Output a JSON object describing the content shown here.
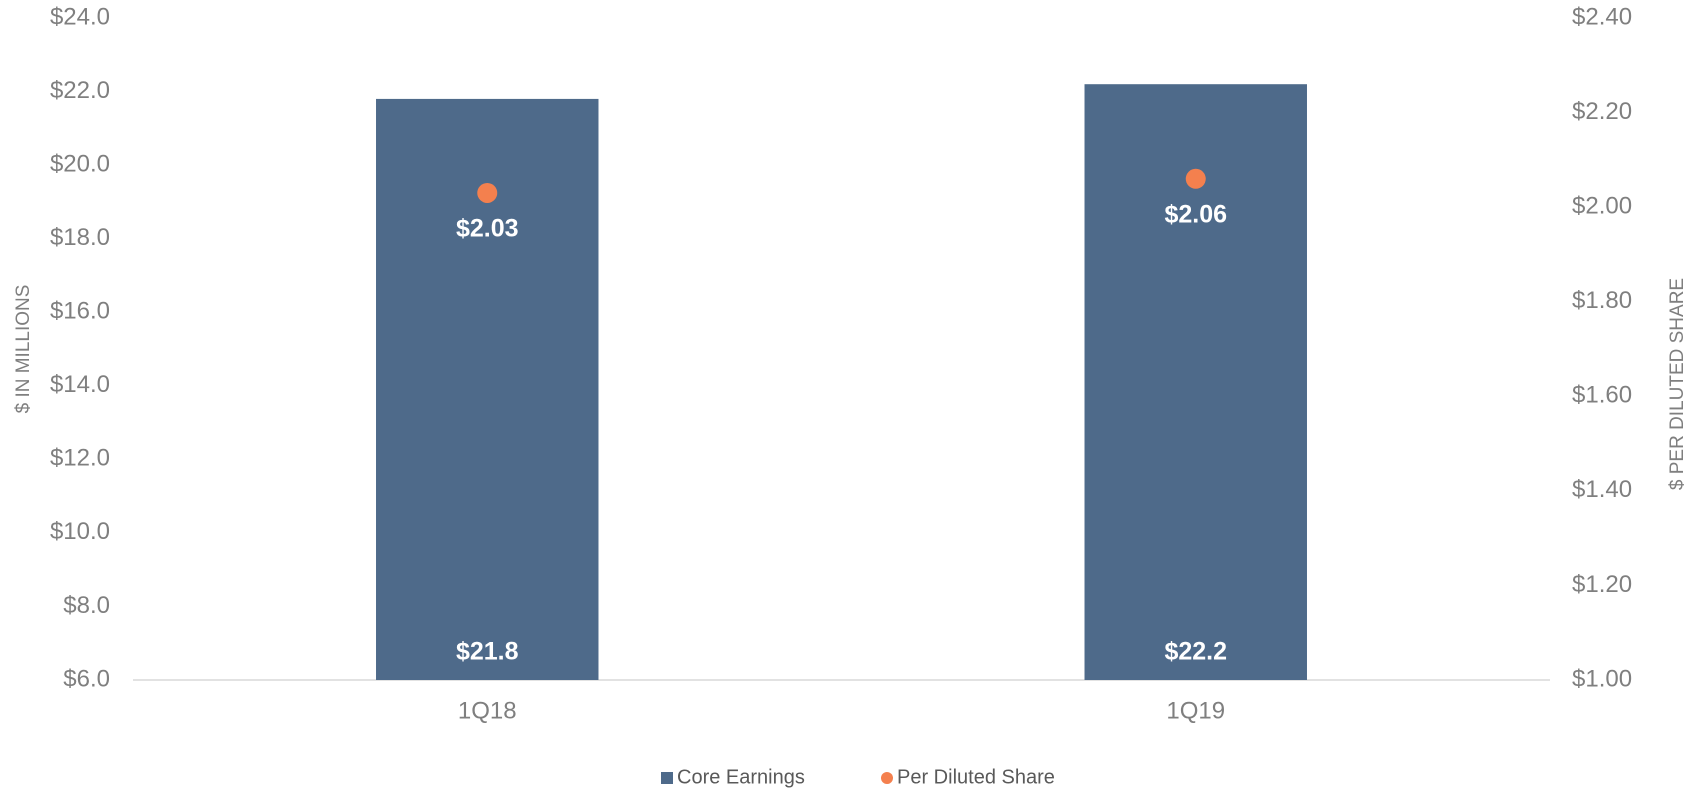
{
  "chart_data": {
    "type": "bar",
    "categories": [
      "1Q18",
      "1Q19"
    ],
    "series": [
      {
        "name": "Core Earnings",
        "color": "#4e6a8a",
        "values": [
          21.8,
          22.2
        ],
        "value_labels": [
          "$21.8",
          "$22.2"
        ]
      },
      {
        "name": "Per Diluted Share",
        "color": "#f4804e",
        "type": "scatter",
        "axis": "y2",
        "values": [
          2.03,
          2.06
        ],
        "value_labels": [
          "$2.03",
          "$2.06"
        ]
      }
    ],
    "ylabel": "$ IN MILLIONS",
    "y2label": "$ PER DILUTED SHARE",
    "ylim": [
      6,
      24
    ],
    "yticks": [
      {
        "value": 6,
        "label": "$6.0"
      },
      {
        "value": 8,
        "label": "$8.0"
      },
      {
        "value": 10,
        "label": "$10.0"
      },
      {
        "value": 12,
        "label": "$12.0"
      },
      {
        "value": 14,
        "label": "$14.0"
      },
      {
        "value": 16,
        "label": "$16.0"
      },
      {
        "value": 18,
        "label": "$18.0"
      },
      {
        "value": 20,
        "label": "$20.0"
      },
      {
        "value": 22,
        "label": "$22.0"
      },
      {
        "value": 24,
        "label": "$24.0"
      }
    ],
    "y2lim": [
      1,
      2.4
    ],
    "y2ticks": [
      {
        "value": 1,
        "label": "$1.00"
      },
      {
        "value": 1.2,
        "label": "$1.20"
      },
      {
        "value": 1.4,
        "label": "$1.40"
      },
      {
        "value": 1.6,
        "label": "$1.60"
      },
      {
        "value": 1.8,
        "label": "$1.80"
      },
      {
        "value": 2,
        "label": "$2.00"
      },
      {
        "value": 2.2,
        "label": "$2.20"
      },
      {
        "value": 2.4,
        "label": "$2.40"
      }
    ],
    "grid": false,
    "legend": "bottom"
  }
}
